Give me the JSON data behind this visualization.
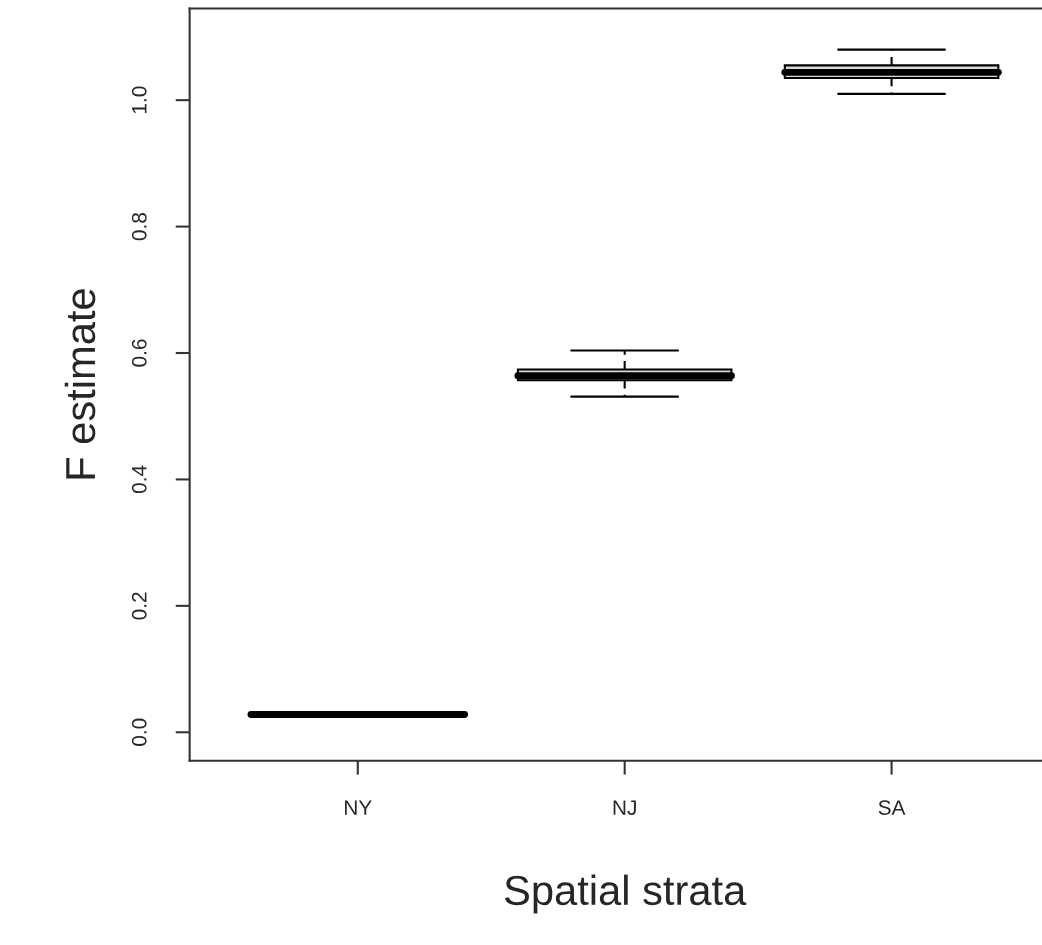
{
  "chart_data": {
    "type": "box",
    "xlabel": "Spatial strata",
    "ylabel": "F estimate",
    "categories": [
      "NY",
      "NJ",
      "SA"
    ],
    "boxes": [
      {
        "low": 0.028,
        "q1": 0.028,
        "median": 0.028,
        "q3": 0.028,
        "high": 0.028
      },
      {
        "low": 0.531,
        "q1": 0.557,
        "median": 0.564,
        "q3": 0.574,
        "high": 0.604
      },
      {
        "low": 1.01,
        "q1": 1.035,
        "median": 1.044,
        "q3": 1.055,
        "high": 1.08
      }
    ],
    "ylim": [
      -0.045,
      1.145
    ],
    "yticks": [
      {
        "value": 0.0,
        "label": "0.0"
      },
      {
        "value": 0.2,
        "label": "0.2"
      },
      {
        "value": 0.4,
        "label": "0.4"
      },
      {
        "value": 0.6,
        "label": "0.6"
      },
      {
        "value": 0.8,
        "label": "0.8"
      },
      {
        "value": 1.0,
        "label": "1.0"
      }
    ],
    "grid": false,
    "legend": false
  }
}
